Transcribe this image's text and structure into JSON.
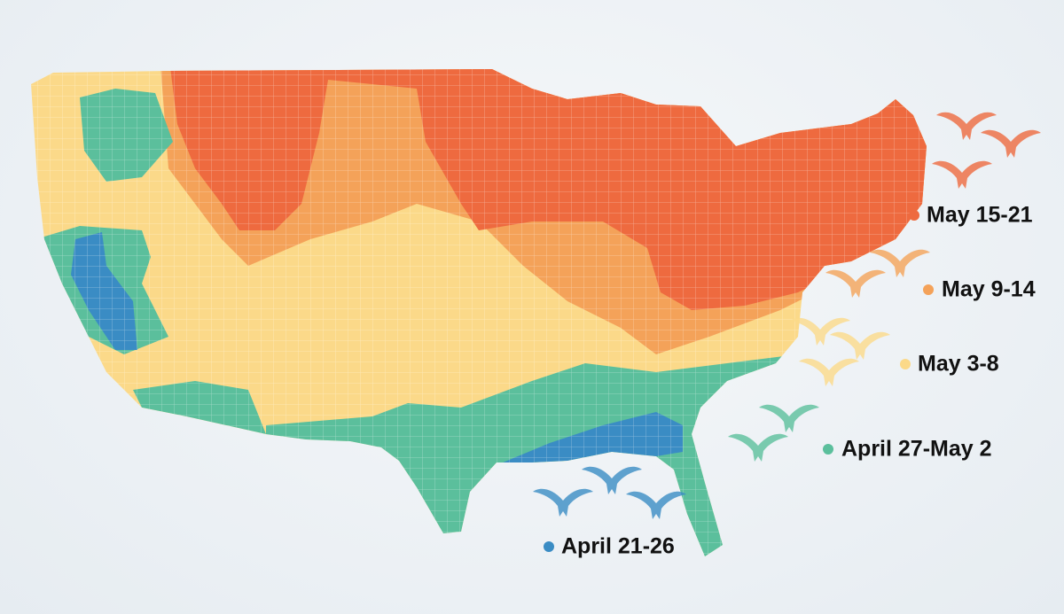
{
  "legend": {
    "items": [
      {
        "label": "May 15-21",
        "color": "#ee6a3f"
      },
      {
        "label": "May 9-14",
        "color": "#f4a259"
      },
      {
        "label": "May 3-8",
        "color": "#fbd989"
      },
      {
        "label": "April 27-May 2",
        "color": "#5bbf9c"
      },
      {
        "label": "April 21-26",
        "color": "#3a8cc4"
      }
    ]
  }
}
